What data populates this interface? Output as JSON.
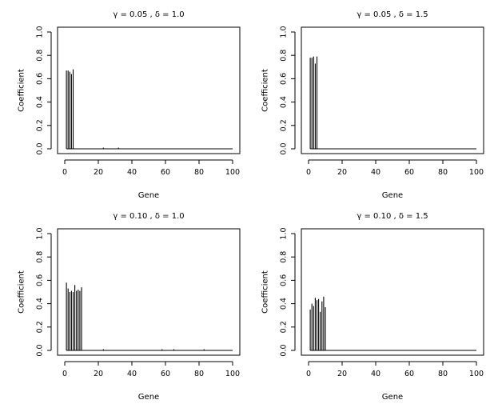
{
  "chart_data": [
    {
      "type": "bar",
      "title": "γ = 0.05 , δ = 1.0",
      "xlabel": "Gene",
      "ylabel": "Coefficient",
      "xlim": [
        0,
        100
      ],
      "ylim": [
        0,
        1
      ],
      "x_ticks": [
        0,
        20,
        40,
        60,
        80,
        100
      ],
      "y_ticks": [
        0,
        0.2,
        0.4,
        0.6,
        0.8,
        1.0
      ],
      "y_tick_labels": [
        "0.0",
        "0.2",
        "0.4",
        "0.6",
        "0.8",
        "1.0"
      ],
      "x": [
        1,
        2,
        3,
        4,
        5,
        6,
        7,
        8,
        9,
        10,
        11,
        12,
        13,
        14,
        15,
        16,
        17,
        18,
        19,
        20,
        21,
        22,
        23,
        24,
        25,
        26,
        27,
        28,
        29,
        30,
        31,
        32,
        33,
        34,
        35,
        36,
        37,
        38,
        39,
        40,
        41,
        42,
        43,
        44,
        45,
        46,
        47,
        48,
        49,
        50,
        51,
        52,
        53,
        54,
        55,
        56,
        57,
        58,
        59,
        60,
        61,
        62,
        63,
        64,
        65,
        66,
        67,
        68,
        69,
        70,
        71,
        72,
        73,
        74,
        75,
        76,
        77,
        78,
        79,
        80,
        81,
        82,
        83,
        84,
        85,
        86,
        87,
        88,
        89,
        90,
        91,
        92,
        93,
        94,
        95,
        96,
        97,
        98,
        99,
        100
      ],
      "values": [
        0.67,
        0.67,
        0.66,
        0.64,
        0.68,
        0.0,
        0.0,
        0.0,
        0.0,
        0.0,
        0.0,
        0.0,
        0.0,
        0.0,
        0.0,
        0.0,
        0.0,
        0.0,
        0.0,
        0.0,
        0.0,
        0.0,
        0.01,
        0.0,
        0.0,
        0.0,
        0.0,
        0.0,
        0.0,
        0.0,
        0.0,
        0.01,
        0.0,
        0.0,
        0.0,
        0.0,
        0.0,
        0.0,
        0.0,
        0.0,
        0.0,
        0.0,
        0.0,
        0.0,
        0.0,
        0.0,
        0.0,
        0.0,
        0.0,
        0.0,
        0.0,
        0.0,
        0.0,
        0.0,
        0.0,
        0.0,
        0.0,
        0.0,
        0.0,
        0.0,
        0.0,
        0.0,
        0.0,
        0.0,
        0.0,
        0.0,
        0.0,
        0.0,
        0.0,
        0.0,
        0.0,
        0.0,
        0.0,
        0.0,
        0.0,
        0.0,
        0.0,
        0.0,
        0.0,
        0.0,
        0.0,
        0.0,
        0.0,
        0.0,
        0.0,
        0.0,
        0.0,
        0.0,
        0.0,
        0.0,
        0.0,
        0.0,
        0.0,
        0.0,
        0.0,
        0.0,
        0.0,
        0.0,
        0.0,
        0.0
      ]
    },
    {
      "type": "bar",
      "title": "γ = 0.05 , δ = 1.5",
      "xlabel": "Gene",
      "ylabel": "Coefficient",
      "xlim": [
        0,
        100
      ],
      "ylim": [
        0,
        1
      ],
      "x_ticks": [
        0,
        20,
        40,
        60,
        80,
        100
      ],
      "y_ticks": [
        0,
        0.2,
        0.4,
        0.6,
        0.8,
        1.0
      ],
      "y_tick_labels": [
        "0.0",
        "0.2",
        "0.4",
        "0.6",
        "0.8",
        "1.0"
      ],
      "x": [
        1,
        2,
        3,
        4,
        5,
        6,
        7,
        8,
        9,
        10,
        11,
        12,
        13,
        14,
        15,
        16,
        17,
        18,
        19,
        20,
        21,
        22,
        23,
        24,
        25,
        26,
        27,
        28,
        29,
        30,
        31,
        32,
        33,
        34,
        35,
        36,
        37,
        38,
        39,
        40,
        41,
        42,
        43,
        44,
        45,
        46,
        47,
        48,
        49,
        50,
        51,
        52,
        53,
        54,
        55,
        56,
        57,
        58,
        59,
        60,
        61,
        62,
        63,
        64,
        65,
        66,
        67,
        68,
        69,
        70,
        71,
        72,
        73,
        74,
        75,
        76,
        77,
        78,
        79,
        80,
        81,
        82,
        83,
        84,
        85,
        86,
        87,
        88,
        89,
        90,
        91,
        92,
        93,
        94,
        95,
        96,
        97,
        98,
        99,
        100
      ],
      "values": [
        0.78,
        0.78,
        0.79,
        0.73,
        0.79,
        0.0,
        0.0,
        0.0,
        0.0,
        0.0,
        0.0,
        0.0,
        0.0,
        0.0,
        0.0,
        0.0,
        0.0,
        0.0,
        0.0,
        0.0,
        0.0,
        0.0,
        0.0,
        0.0,
        0.0,
        0.0,
        0.0,
        0.0,
        0.0,
        0.0,
        0.0,
        0.0,
        0.0,
        0.0,
        0.0,
        0.0,
        0.0,
        0.0,
        0.0,
        0.0,
        0.0,
        0.0,
        0.0,
        0.0,
        0.0,
        0.0,
        0.0,
        0.0,
        0.0,
        0.0,
        0.0,
        0.0,
        0.0,
        0.0,
        0.0,
        0.0,
        0.0,
        0.0,
        0.0,
        0.0,
        0.0,
        0.0,
        0.0,
        0.0,
        0.0,
        0.0,
        0.0,
        0.0,
        0.0,
        0.0,
        0.0,
        0.0,
        0.0,
        0.0,
        0.0,
        0.0,
        0.0,
        0.0,
        0.0,
        0.0,
        0.0,
        0.0,
        0.0,
        0.0,
        0.0,
        0.0,
        0.0,
        0.0,
        0.0,
        0.0,
        0.0,
        0.0,
        0.0,
        0.0,
        0.0,
        0.0,
        0.0,
        0.0,
        0.0,
        0.0
      ]
    },
    {
      "type": "bar",
      "title": "γ = 0.10 , δ = 1.0",
      "xlabel": "Gene",
      "ylabel": "Coefficient",
      "xlim": [
        0,
        100
      ],
      "ylim": [
        0,
        1
      ],
      "x_ticks": [
        0,
        20,
        40,
        60,
        80,
        100
      ],
      "y_ticks": [
        0,
        0.2,
        0.4,
        0.6,
        0.8,
        1.0
      ],
      "y_tick_labels": [
        "0.0",
        "0.2",
        "0.4",
        "0.6",
        "0.8",
        "1.0"
      ],
      "x": [
        1,
        2,
        3,
        4,
        5,
        6,
        7,
        8,
        9,
        10,
        11,
        12,
        13,
        14,
        15,
        16,
        17,
        18,
        19,
        20,
        21,
        22,
        23,
        24,
        25,
        26,
        27,
        28,
        29,
        30,
        31,
        32,
        33,
        34,
        35,
        36,
        37,
        38,
        39,
        40,
        41,
        42,
        43,
        44,
        45,
        46,
        47,
        48,
        49,
        50,
        51,
        52,
        53,
        54,
        55,
        56,
        57,
        58,
        59,
        60,
        61,
        62,
        63,
        64,
        65,
        66,
        67,
        68,
        69,
        70,
        71,
        72,
        73,
        74,
        75,
        76,
        77,
        78,
        79,
        80,
        81,
        82,
        83,
        84,
        85,
        86,
        87,
        88,
        89,
        90,
        91,
        92,
        93,
        94,
        95,
        96,
        97,
        98,
        99,
        100
      ],
      "values": [
        0.58,
        0.53,
        0.5,
        0.51,
        0.5,
        0.56,
        0.51,
        0.52,
        0.51,
        0.54,
        0.0,
        0.0,
        0.0,
        0.0,
        0.0,
        0.0,
        0.0,
        0.0,
        0.0,
        0.0,
        0.0,
        0.0,
        0.01,
        0.0,
        0.0,
        0.0,
        0.0,
        0.0,
        0.0,
        0.0,
        0.0,
        0.0,
        0.0,
        0.0,
        0.0,
        0.0,
        0.0,
        0.0,
        0.0,
        0.0,
        0.0,
        0.0,
        0.0,
        0.0,
        0.0,
        0.0,
        0.0,
        0.0,
        0.0,
        0.0,
        0.0,
        0.0,
        0.0,
        0.0,
        0.0,
        0.0,
        0.0,
        0.01,
        0.0,
        0.0,
        0.0,
        0.0,
        0.0,
        0.0,
        0.01,
        0.0,
        0.0,
        0.0,
        0.0,
        0.0,
        0.0,
        0.0,
        0.0,
        0.0,
        0.0,
        0.0,
        0.0,
        0.0,
        0.0,
        0.0,
        0.0,
        0.0,
        0.01,
        0.0,
        0.0,
        0.0,
        0.0,
        0.0,
        0.0,
        0.0,
        0.0,
        0.0,
        0.0,
        0.0,
        0.0,
        0.0,
        0.0,
        0.0,
        0.0,
        0.0
      ]
    },
    {
      "type": "bar",
      "title": "γ = 0.10 , δ = 1.5",
      "xlabel": "Gene",
      "ylabel": "Coefficient",
      "xlim": [
        0,
        100
      ],
      "ylim": [
        0,
        1
      ],
      "x_ticks": [
        0,
        20,
        40,
        60,
        80,
        100
      ],
      "y_ticks": [
        0,
        0.2,
        0.4,
        0.6,
        0.8,
        1.0
      ],
      "y_tick_labels": [
        "0.0",
        "0.2",
        "0.4",
        "0.6",
        "0.8",
        "1.0"
      ],
      "x": [
        1,
        2,
        3,
        4,
        5,
        6,
        7,
        8,
        9,
        10,
        11,
        12,
        13,
        14,
        15,
        16,
        17,
        18,
        19,
        20,
        21,
        22,
        23,
        24,
        25,
        26,
        27,
        28,
        29,
        30,
        31,
        32,
        33,
        34,
        35,
        36,
        37,
        38,
        39,
        40,
        41,
        42,
        43,
        44,
        45,
        46,
        47,
        48,
        49,
        50,
        51,
        52,
        53,
        54,
        55,
        56,
        57,
        58,
        59,
        60,
        61,
        62,
        63,
        64,
        65,
        66,
        67,
        68,
        69,
        70,
        71,
        72,
        73,
        74,
        75,
        76,
        77,
        78,
        79,
        80,
        81,
        82,
        83,
        84,
        85,
        86,
        87,
        88,
        89,
        90,
        91,
        92,
        93,
        94,
        95,
        96,
        97,
        98,
        99,
        100
      ],
      "values": [
        0.35,
        0.4,
        0.38,
        0.45,
        0.43,
        0.44,
        0.33,
        0.42,
        0.46,
        0.37,
        0.0,
        0.0,
        0.0,
        0.0,
        0.0,
        0.0,
        0.0,
        0.0,
        0.0,
        0.0,
        0.0,
        0.0,
        0.0,
        0.0,
        0.0,
        0.0,
        0.0,
        0.0,
        0.0,
        0.0,
        0.0,
        0.0,
        0.0,
        0.0,
        0.0,
        0.0,
        0.0,
        0.0,
        0.0,
        0.0,
        0.0,
        0.0,
        0.0,
        0.0,
        0.0,
        0.0,
        0.0,
        0.0,
        0.0,
        0.0,
        0.0,
        0.0,
        0.0,
        0.0,
        0.0,
        0.0,
        0.0,
        0.0,
        0.0,
        0.0,
        0.0,
        0.0,
        0.0,
        0.0,
        0.0,
        0.0,
        0.0,
        0.0,
        0.0,
        0.0,
        0.0,
        0.0,
        0.0,
        0.0,
        0.0,
        0.0,
        0.0,
        0.0,
        0.0,
        0.0,
        0.0,
        0.0,
        0.0,
        0.0,
        0.0,
        0.0,
        0.0,
        0.0,
        0.0,
        0.0,
        0.0,
        0.0,
        0.0,
        0.0,
        0.0,
        0.0,
        0.0,
        0.0,
        0.0,
        0.0
      ]
    }
  ]
}
